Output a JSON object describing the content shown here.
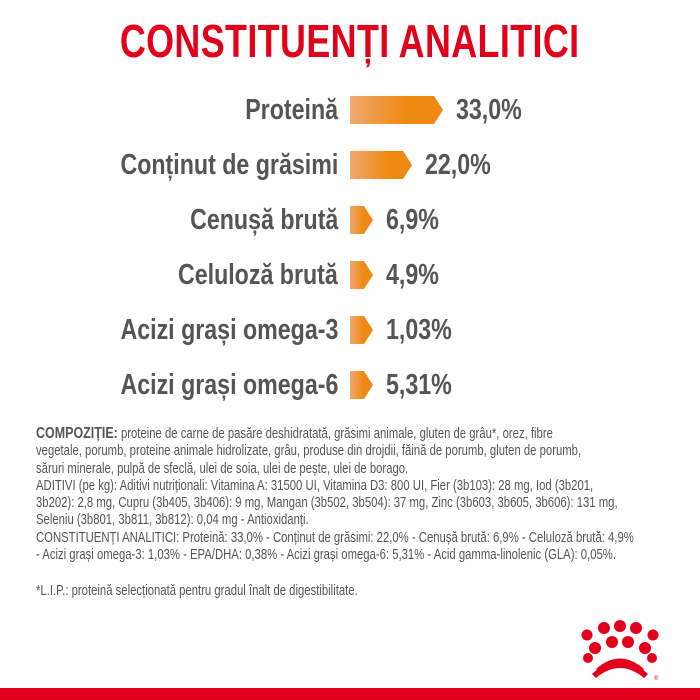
{
  "title": "CONSTITUENȚI ANALITICI",
  "colors": {
    "brand_red": "#e2001a",
    "bar_start": "#f0a870",
    "bar_end": "#ee8a12",
    "text": "#555555"
  },
  "chart_data": {
    "type": "bar",
    "orientation": "horizontal",
    "categories": [
      "Proteină",
      "Conținut de grăsimi",
      "Cenușă brută",
      "Celuloză brută",
      "Acizi grași omega-3",
      "Acizi grași omega-6"
    ],
    "values": [
      33.0,
      22.0,
      6.9,
      4.9,
      1.03,
      5.31
    ],
    "value_labels": [
      "33,0%",
      "22,0%",
      "6,9%",
      "4,9%",
      "1,03%",
      "5,31%"
    ],
    "unit": "%"
  },
  "composition": {
    "heading": "COMPOZIȚIE:",
    "lines": [
      "proteine de carne de pasăre deshidratată, grăsimi animale, gluten de grâu*, orez, fibre",
      "vegetale, porumb, proteine animale hidrolizate, grâu, produse din drojdii, făină de porumb, gluten de porumb,",
      "săruri minerale, pulpă de sfeclă, ulei de soia, ulei de pește, ulei de borago.",
      "ADITIVI (pe kg): Aditivi nutriționali: Vitamina A: 31500 UI, Vitamina D3: 800 UI, Fier (3b103): 28 mg, Iod (3b201,",
      "3b202): 2,8 mg, Cupru (3b405, 3b406): 9 mg, Mangan (3b502, 3b504): 37 mg, Zinc (3b603, 3b605, 3b606): 131 mg,",
      "Seleniu (3b801, 3b811, 3b812): 0,04 mg - Antioxidanți.",
      "CONSTITUENȚI ANALITICI: Proteină: 33,0% - Conținut de grăsimi: 22,0% - Cenușă brută: 6,9% - Celuloză brută: 4,9%",
      "- Acizi grași omega-3: 1,03% - EPA/DHA: 0,38% - Acizi grași omega-6: 5,31% - Acid gamma-linolenic (GLA): 0,05%."
    ],
    "note": "*L.I.P.: proteină selecționată pentru gradul înalt de digestibilitate."
  },
  "logo": {
    "name": "crown-logo",
    "mark": "®"
  }
}
